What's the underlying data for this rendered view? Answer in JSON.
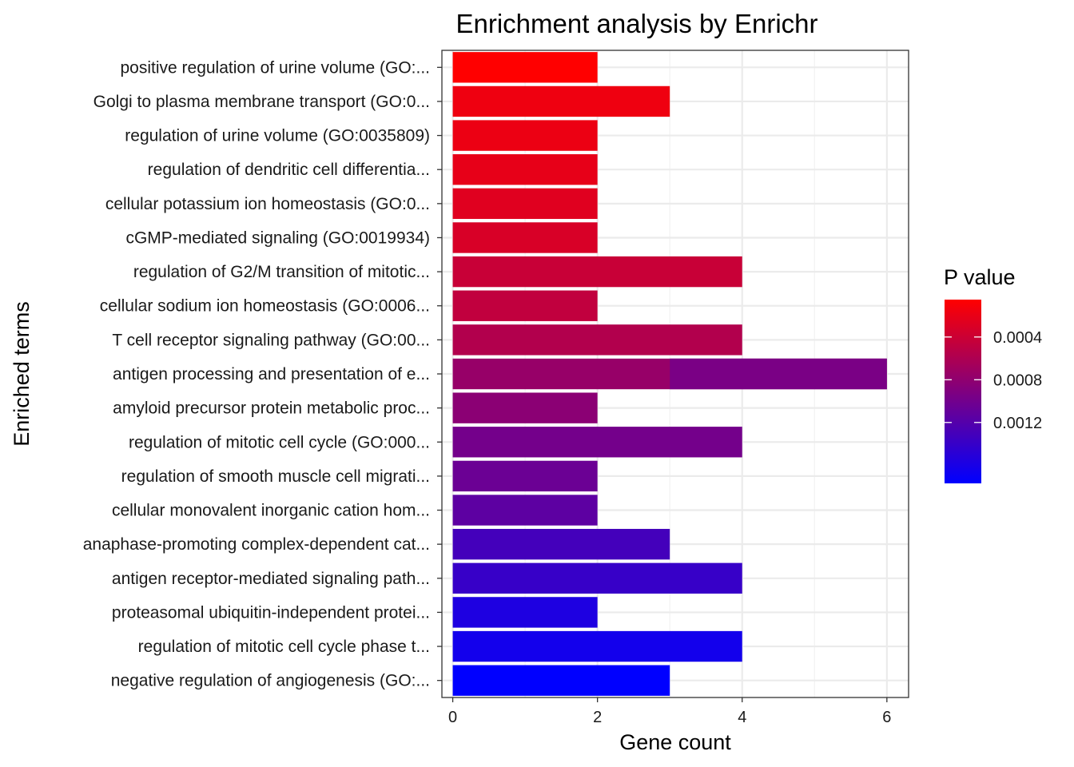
{
  "chart_data": {
    "type": "bar",
    "orientation": "horizontal",
    "title": "Enrichment analysis by Enrichr",
    "xlabel": "Gene count",
    "ylabel": "Enriched terms",
    "xlim": [
      -0.15,
      6.3
    ],
    "xticks": [
      "0",
      "2",
      "4",
      "6"
    ],
    "grid": true,
    "categories": [
      "positive regulation of urine volume (GO:...",
      "Golgi to plasma membrane transport (GO:0...",
      "regulation of urine volume (GO:0035809)",
      "regulation of dendritic cell differentia...",
      "cellular potassium ion homeostasis (GO:0...",
      "cGMP-mediated signaling (GO:0019934)",
      "regulation of G2/M transition of mitotic...",
      "cellular sodium ion homeostasis (GO:0006...",
      "T cell receptor signaling pathway (GO:00...",
      "antigen processing and presentation of e...",
      "amyloid precursor protein metabolic proc...",
      "regulation of mitotic cell cycle (GO:000...",
      "regulation of smooth muscle cell migrati...",
      "cellular monovalent inorganic cation hom...",
      "anaphase-promoting complex-dependent cat...",
      "antigen receptor-mediated signaling path...",
      "proteasomal ubiquitin-independent protei...",
      "regulation of mitotic cell cycle phase t...",
      "negative regulation of angiogenesis (GO:..."
    ],
    "values": [
      2,
      3,
      2,
      2,
      2,
      2,
      4,
      2,
      4,
      6,
      2,
      4,
      2,
      2,
      3,
      4,
      2,
      4,
      3
    ],
    "p_values": [
      5e-05,
      0.00016,
      0.00018,
      0.00021,
      0.00026,
      0.00031,
      0.00042,
      0.00047,
      0.00057,
      0.00075,
      0.00083,
      0.00099,
      0.00105,
      0.00114,
      0.00131,
      0.0014,
      0.00157,
      0.00164,
      0.00177
    ],
    "split_segments": [
      {
        "category_index": 9,
        "from": 3,
        "to": 6,
        "p_value": 0.00095
      }
    ],
    "legend": {
      "title": "P value",
      "placement": "right",
      "low_color": "#ff0000",
      "high_color": "#0000ff",
      "range": [
        5e-05,
        0.00177
      ],
      "ticks": [
        {
          "label": "0.0004",
          "value": 0.0004
        },
        {
          "label": "0.0008",
          "value": 0.0008
        },
        {
          "label": "0.0012",
          "value": 0.0012
        }
      ]
    }
  }
}
